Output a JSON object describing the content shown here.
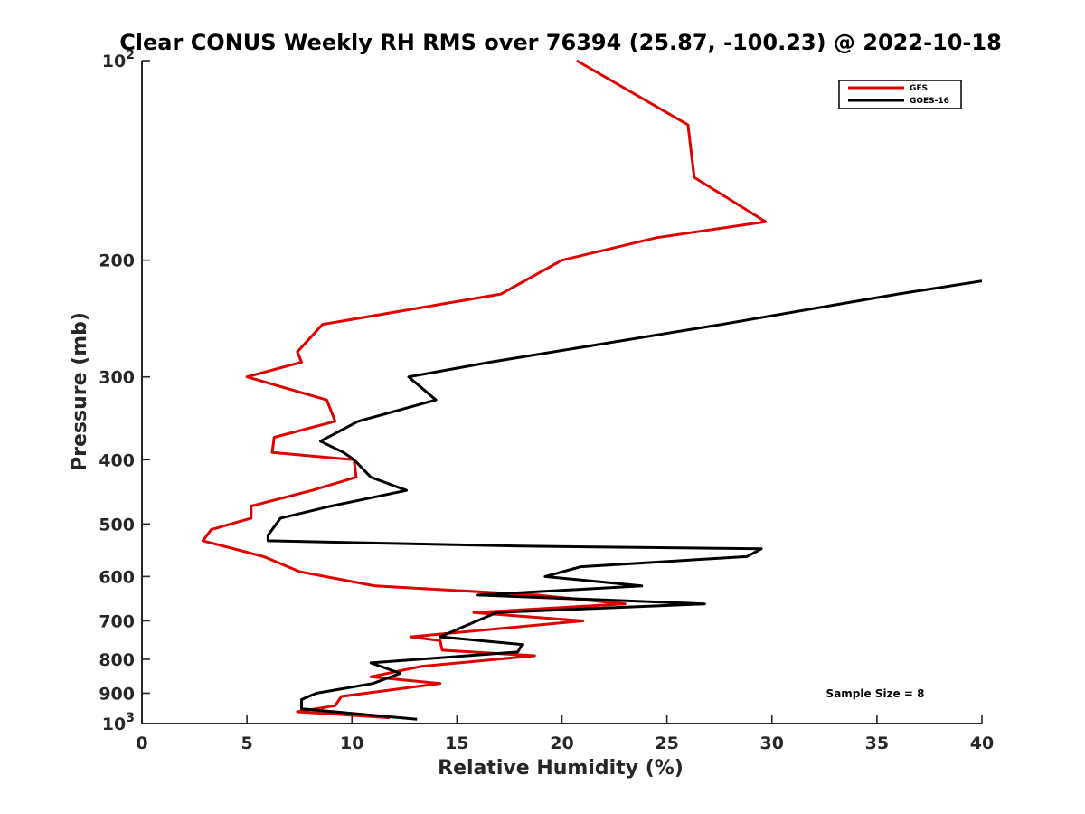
{
  "chart_data": {
    "type": "line",
    "title": "Clear CONUS Weekly RH RMS over 76394 (25.87, -100.23) @ 2022-10-18",
    "xlabel": "Relative Humidity (%)",
    "ylabel": "Pressure (mb)",
    "xlim": [
      0,
      40
    ],
    "ylim": [
      100,
      1000
    ],
    "yscale": "log",
    "y_reversed": true,
    "grid": false,
    "legend_position": "top-right",
    "x_ticks": [
      0,
      5,
      10,
      15,
      20,
      25,
      30,
      35,
      40
    ],
    "x_tick_labels": [
      "0",
      "5",
      "10",
      "15",
      "20",
      "25",
      "30",
      "35",
      "40"
    ],
    "y_ticks": [
      100,
      200,
      300,
      400,
      500,
      600,
      700,
      800,
      900,
      1000
    ],
    "y_tick_labels": [
      {
        "base": "10",
        "exp": "2"
      },
      {
        "base": "200"
      },
      {
        "base": "300"
      },
      {
        "base": "400"
      },
      {
        "base": "500"
      },
      {
        "base": "600"
      },
      {
        "base": "700"
      },
      {
        "base": "800"
      },
      {
        "base": "900"
      },
      {
        "base": "10",
        "exp": "3"
      }
    ],
    "annotation": "Sample Size = 8",
    "series": [
      {
        "name": "GFS",
        "color": "#e00000",
        "points": [
          [
            20.7,
            100
          ],
          [
            26.0,
            125
          ],
          [
            26.3,
            150
          ],
          [
            29.7,
            175
          ],
          [
            24.5,
            185
          ],
          [
            20.0,
            200
          ],
          [
            17.1,
            225
          ],
          [
            8.6,
            250
          ],
          [
            7.4,
            275
          ],
          [
            7.6,
            285
          ],
          [
            5.0,
            300
          ],
          [
            8.8,
            325
          ],
          [
            9.2,
            350
          ],
          [
            6.3,
            370
          ],
          [
            6.2,
            390
          ],
          [
            10.1,
            400
          ],
          [
            10.2,
            425
          ],
          [
            8.1,
            445
          ],
          [
            5.2,
            470
          ],
          [
            5.2,
            490
          ],
          [
            3.3,
            510
          ],
          [
            2.9,
            530
          ],
          [
            5.8,
            560
          ],
          [
            7.5,
            590
          ],
          [
            11.1,
            620
          ],
          [
            18.8,
            640
          ],
          [
            23.0,
            660
          ],
          [
            15.8,
            680
          ],
          [
            21.0,
            700
          ],
          [
            12.8,
            740
          ],
          [
            14.2,
            750
          ],
          [
            14.3,
            775
          ],
          [
            18.7,
            790
          ],
          [
            13.3,
            820
          ],
          [
            10.9,
            850
          ],
          [
            14.2,
            870
          ],
          [
            9.5,
            910
          ],
          [
            9.2,
            940
          ],
          [
            7.4,
            960
          ],
          [
            11.8,
            980
          ]
        ]
      },
      {
        "name": "GOES-16",
        "color": "#000000",
        "points": [
          [
            40.0,
            215
          ],
          [
            36.0,
            225
          ],
          [
            27.6,
            250
          ],
          [
            16.6,
            285
          ],
          [
            12.7,
            300
          ],
          [
            14.0,
            325
          ],
          [
            10.3,
            350
          ],
          [
            8.5,
            375
          ],
          [
            9.6,
            390
          ],
          [
            10.1,
            400
          ],
          [
            10.9,
            425
          ],
          [
            12.6,
            445
          ],
          [
            9.0,
            470
          ],
          [
            6.6,
            490
          ],
          [
            6.0,
            520
          ],
          [
            6.0,
            530
          ],
          [
            18.0,
            540
          ],
          [
            29.5,
            545
          ],
          [
            28.8,
            560
          ],
          [
            20.9,
            580
          ],
          [
            19.2,
            600
          ],
          [
            23.8,
            620
          ],
          [
            16.0,
            640
          ],
          [
            26.8,
            660
          ],
          [
            16.9,
            680
          ],
          [
            15.5,
            710
          ],
          [
            14.2,
            740
          ],
          [
            18.1,
            760
          ],
          [
            17.9,
            780
          ],
          [
            10.9,
            810
          ],
          [
            12.3,
            840
          ],
          [
            11.0,
            870
          ],
          [
            8.3,
            900
          ],
          [
            7.6,
            920
          ],
          [
            7.6,
            950
          ],
          [
            13.1,
            985
          ]
        ]
      }
    ]
  }
}
